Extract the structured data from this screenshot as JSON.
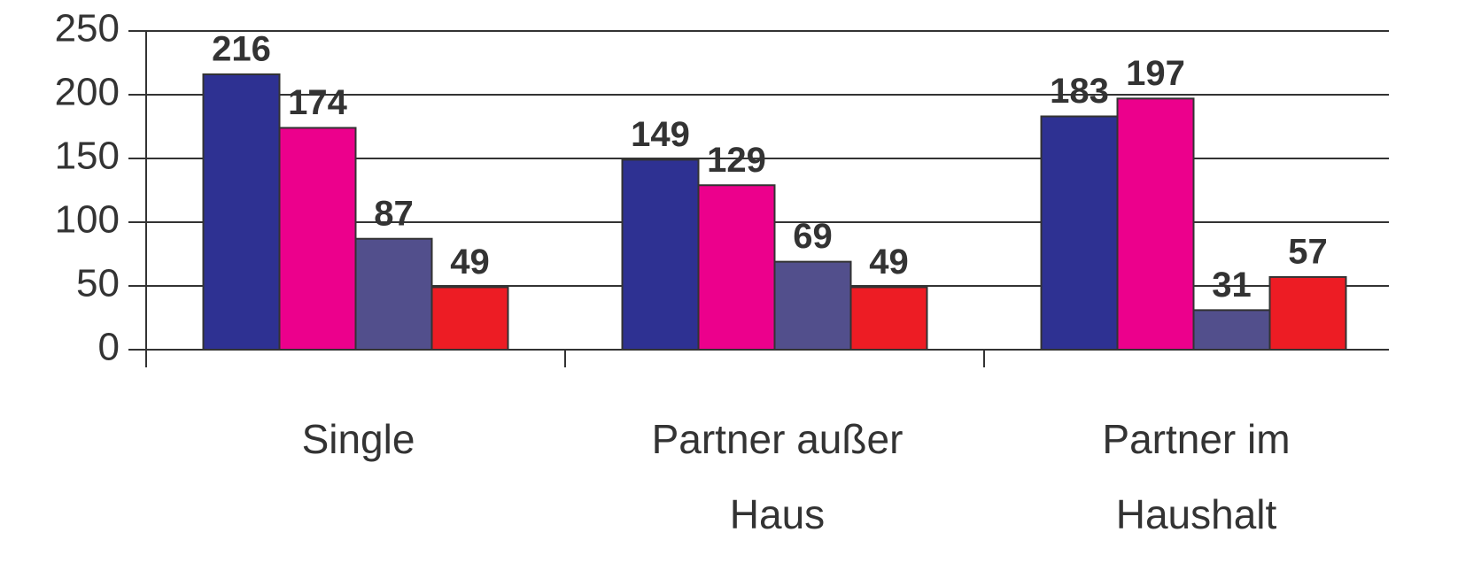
{
  "chart_data": {
    "type": "bar",
    "categories": [
      [
        "Single"
      ],
      [
        "Partner außer",
        "Haus"
      ],
      [
        "Partner im",
        "Haushalt"
      ]
    ],
    "series": [
      {
        "color": "#2e3192",
        "values": [
          216,
          149,
          183
        ]
      },
      {
        "color": "#ec008c",
        "values": [
          174,
          129,
          197
        ]
      },
      {
        "color": "#524f8c",
        "values": [
          87,
          69,
          31
        ]
      },
      {
        "color": "#ed1c24",
        "values": [
          49,
          49,
          57
        ]
      }
    ],
    "ylim": [
      0,
      250
    ],
    "yticks": [
      0,
      50,
      100,
      150,
      200,
      250
    ],
    "grid": true
  }
}
